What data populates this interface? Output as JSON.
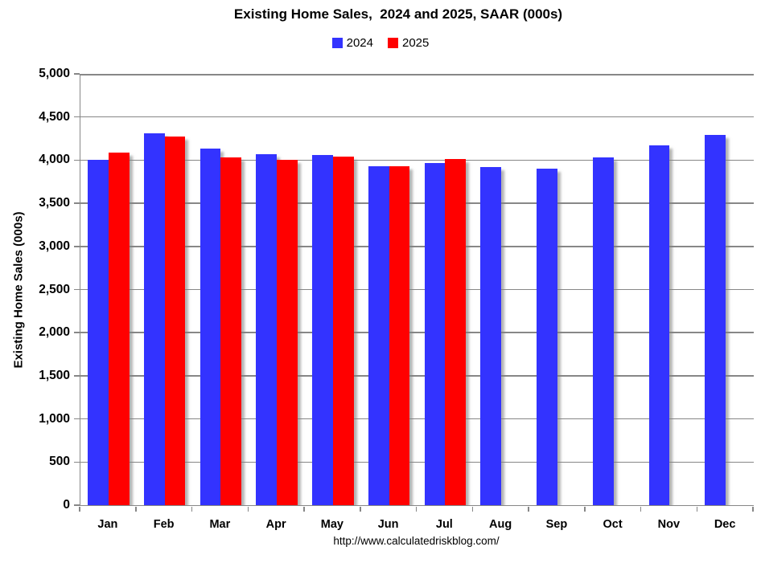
{
  "footer_url": "http://www.calculatedriskblog.com/",
  "chart_data": {
    "type": "bar",
    "title": "Existing Home Sales,  2024 and 2025, SAAR (000s)",
    "ylabel": "Existing Home Sales (000s)",
    "xlabel": "",
    "categories": [
      "Jan",
      "Feb",
      "Mar",
      "Apr",
      "May",
      "Jun",
      "Jul",
      "Aug",
      "Sep",
      "Oct",
      "Nov",
      "Dec"
    ],
    "series": [
      {
        "name": "2024",
        "color": "#3333FF",
        "values": [
          4000,
          4310,
          4130,
          4070,
          4060,
          3930,
          3970,
          3920,
          3900,
          4030,
          4170,
          4290
        ]
      },
      {
        "name": "2025",
        "color": "#FF0000",
        "values": [
          4090,
          4270,
          4030,
          4000,
          4040,
          3930,
          4010,
          null,
          null,
          null,
          null,
          null
        ]
      }
    ],
    "ylim": [
      0,
      5000
    ],
    "ytick_interval": 500,
    "ytick_labels": [
      "0",
      "500",
      "1,000",
      "1,500",
      "2,000",
      "2,500",
      "3,000",
      "3,500",
      "4,000",
      "4,500",
      "5,000"
    ],
    "grid": true,
    "grid_color": "#878787",
    "legend_position": "top"
  }
}
